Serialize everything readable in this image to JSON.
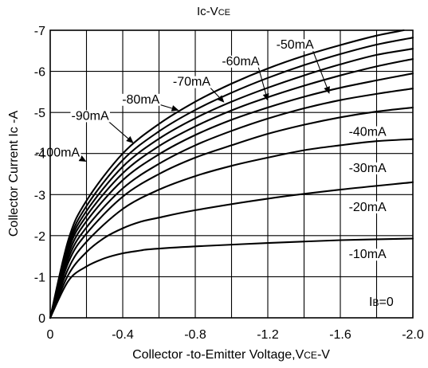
{
  "chart_data": {
    "type": "line",
    "title": {
      "main": "Ic-V",
      "sub": "CE"
    },
    "xlabel": {
      "main": "Collector -to-Emitter Voltage,V",
      "sub": "CE",
      "suffix": "-V"
    },
    "ylabel": "Collector Current Ic -A",
    "xlim": [
      0,
      -2.0
    ],
    "ylim": [
      0,
      -7
    ],
    "x_ticks": [
      0,
      -0.4,
      -0.8,
      -1.2,
      -1.6,
      -2.0
    ],
    "x_tick_labels": [
      "0",
      "-0.4",
      "-0.8",
      "-1.2",
      "-1.6",
      "-2.0"
    ],
    "y_ticks": [
      0,
      -1,
      -2,
      -3,
      -4,
      -5,
      -6,
      -7
    ],
    "y_tick_labels": [
      "0",
      "-1",
      "-2",
      "-3",
      "-4",
      "-5",
      "-6",
      "-7"
    ],
    "x_gridlines": [
      -0.2,
      -0.4,
      -0.6,
      -0.8,
      -1.0,
      -1.2,
      -1.4,
      -1.6,
      -1.8
    ],
    "y_gridlines": [
      -1,
      -2,
      -3,
      -4,
      -5,
      -6
    ],
    "grid": true,
    "ib_label": {
      "main": "I",
      "sub": "B",
      "suffix": "=0"
    },
    "series": [
      {
        "name": "-10mA",
        "x": [
          0,
          -0.1,
          -0.2,
          -0.3,
          -0.4,
          -0.5,
          -0.55,
          -0.8,
          -1.2,
          -1.6,
          -2.0
        ],
        "y": [
          0,
          -0.9,
          -1.25,
          -1.45,
          -1.57,
          -1.64,
          -1.67,
          -1.74,
          -1.82,
          -1.89,
          -1.93
        ]
      },
      {
        "name": "-20mA",
        "x": [
          0,
          -0.1,
          -0.2,
          -0.3,
          -0.4,
          -0.5,
          -0.58,
          -0.8,
          -1.2,
          -1.6,
          -2.0
        ],
        "y": [
          0,
          -1.05,
          -1.6,
          -1.95,
          -2.18,
          -2.34,
          -2.42,
          -2.62,
          -2.9,
          -3.12,
          -3.3
        ]
      },
      {
        "name": "-30mA",
        "x": [
          0,
          -0.1,
          -0.2,
          -0.4,
          -0.6,
          -0.8,
          -1.0,
          -1.2,
          -1.4,
          -1.6,
          -1.8,
          -2.0
        ],
        "y": [
          0,
          -1.2,
          -1.85,
          -2.65,
          -3.12,
          -3.45,
          -3.7,
          -3.9,
          -4.08,
          -4.2,
          -4.3,
          -4.35
        ]
      },
      {
        "name": "-40mA",
        "x": [
          0,
          -0.1,
          -0.2,
          -0.4,
          -0.6,
          -0.8,
          -1.0,
          -1.2,
          -1.4,
          -1.6,
          -1.8,
          -2.0
        ],
        "y": [
          0,
          -1.35,
          -2.05,
          -2.95,
          -3.5,
          -3.9,
          -4.2,
          -4.48,
          -4.7,
          -4.88,
          -5.02,
          -5.12
        ]
      },
      {
        "name": "-50mA",
        "x": [
          0,
          -0.1,
          -0.2,
          -0.4,
          -0.6,
          -0.8,
          -1.0,
          -1.2,
          -1.4,
          -1.6,
          -1.8,
          -2.0
        ],
        "y": [
          0,
          -1.45,
          -2.2,
          -3.15,
          -3.75,
          -4.2,
          -4.55,
          -4.85,
          -5.1,
          -5.3,
          -5.45,
          -5.58
        ]
      },
      {
        "name": "-60mA",
        "x": [
          0,
          -0.1,
          -0.2,
          -0.4,
          -0.6,
          -0.8,
          -1.0,
          -1.2,
          -1.4,
          -1.6,
          -1.8,
          -2.0
        ],
        "y": [
          0,
          -1.55,
          -2.35,
          -3.35,
          -3.98,
          -4.45,
          -4.82,
          -5.12,
          -5.38,
          -5.6,
          -5.78,
          -5.95
        ]
      },
      {
        "name": "-70mA",
        "x": [
          0,
          -0.1,
          -0.2,
          -0.4,
          -0.6,
          -0.8,
          -1.0,
          -1.2,
          -1.4,
          -1.6,
          -1.8,
          -2.0
        ],
        "y": [
          0,
          -1.65,
          -2.48,
          -3.52,
          -4.18,
          -4.66,
          -5.05,
          -5.37,
          -5.65,
          -5.9,
          -6.12,
          -6.3
        ]
      },
      {
        "name": "-80mA",
        "x": [
          0,
          -0.1,
          -0.2,
          -0.4,
          -0.6,
          -0.8,
          -1.0,
          -1.2,
          -1.4,
          -1.6,
          -1.8,
          -2.0
        ],
        "y": [
          0,
          -1.72,
          -2.6,
          -3.68,
          -4.36,
          -4.86,
          -5.26,
          -5.6,
          -5.9,
          -6.17,
          -6.4,
          -6.55
        ]
      },
      {
        "name": "-90mA",
        "x": [
          0,
          -0.1,
          -0.2,
          -0.4,
          -0.6,
          -0.8,
          -1.0,
          -1.2,
          -1.4,
          -1.6,
          -1.8,
          -2.0
        ],
        "y": [
          0,
          -1.8,
          -2.72,
          -3.84,
          -4.54,
          -5.06,
          -5.48,
          -5.84,
          -6.15,
          -6.42,
          -6.65,
          -6.82
        ]
      },
      {
        "name": "-100mA",
        "x": [
          0,
          -0.1,
          -0.2,
          -0.4,
          -0.6,
          -0.8,
          -1.0,
          -1.2,
          -1.4,
          -1.6,
          -1.8,
          -1.95
        ],
        "y": [
          0,
          -1.9,
          -2.85,
          -4.0,
          -4.72,
          -5.26,
          -5.7,
          -6.07,
          -6.38,
          -6.64,
          -6.87,
          -7.0
        ]
      }
    ],
    "label_points": {
      "-10mA": [
        -1.75,
        -1.45
      ],
      "-20mA": [
        -1.75,
        -2.6
      ],
      "-30mA": [
        -1.75,
        -3.55
      ],
      "-40mA": [
        -1.75,
        -4.43
      ],
      "-50mA": [
        -1.35,
        -6.55
      ],
      "-60mA": [
        -1.05,
        -6.15
      ],
      "-70mA": [
        -0.78,
        -5.65
      ],
      "-80mA": [
        -0.5,
        -5.22
      ],
      "-90mA": [
        -0.22,
        -4.82
      ],
      "-100mA": [
        -0.04,
        -3.93
      ]
    },
    "arrow_targets": {
      "-50mA": [
        -1.54,
        -5.45
      ],
      "-60mA": [
        -1.2,
        -5.28
      ],
      "-70mA": [
        -0.96,
        -5.24
      ],
      "-80mA": [
        -0.71,
        -5.05
      ],
      "-90mA": [
        -0.46,
        -4.25
      ],
      "-100mA": [
        -0.2,
        -3.8
      ]
    }
  }
}
